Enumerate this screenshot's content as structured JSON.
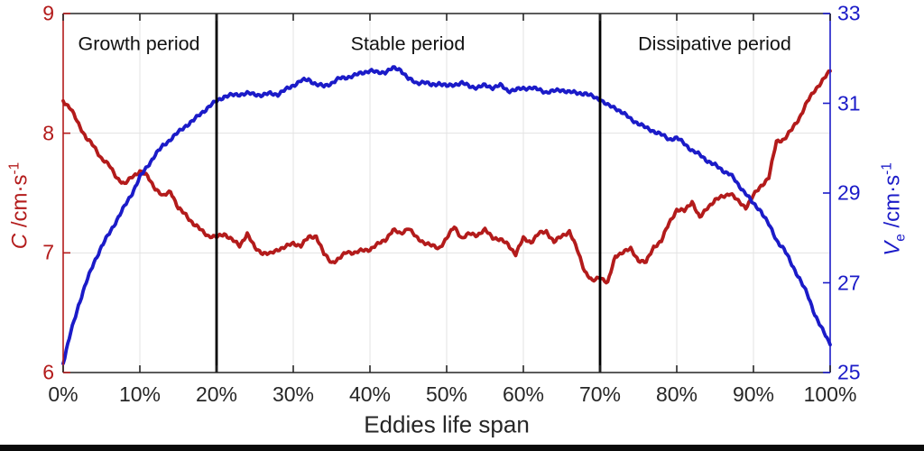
{
  "figure": {
    "xlabel": "Eddies life span",
    "x_ticks": [
      "0%",
      "10%",
      "20%",
      "30%",
      "40%",
      "50%",
      "60%",
      "70%",
      "80%",
      "90%",
      "100%"
    ],
    "left_axis": {
      "symbol": "C",
      "unit": "/cm·s",
      "exp": "-1",
      "tick_labels": [
        "6",
        "7",
        "8",
        "9"
      ],
      "tick_values": [
        6,
        7,
        8,
        9
      ],
      "color": "#b31b1b"
    },
    "right_axis": {
      "symbol": "V",
      "sub": "e",
      "unit": "/cm·s",
      "exp": "-1",
      "tick_labels": [
        "25",
        "27",
        "29",
        "31",
        "33"
      ],
      "tick_values": [
        25,
        27,
        29,
        31,
        33
      ],
      "color": "#1b1bc8"
    },
    "regions": [
      {
        "label": "Growth period"
      },
      {
        "label": "Stable period"
      },
      {
        "label": "Dissipative period"
      }
    ],
    "colors": {
      "grid": "#e3e3e3",
      "x_axis_text": "#262626",
      "frame": "#262626",
      "divider": "#000000"
    }
  },
  "chart_data": {
    "type": "line",
    "title": "",
    "xlabel": "Eddies life span",
    "x": {
      "start": 0,
      "end": 100,
      "step": 1,
      "unit": "%"
    },
    "grid": true,
    "vertical_lines_percent": [
      20,
      70
    ],
    "annotations": [
      {
        "text": "Growth period",
        "x_percent": 10
      },
      {
        "text": "Stable period",
        "x_percent": 45
      },
      {
        "text": "Dissipative period",
        "x_percent": 85
      }
    ],
    "series": [
      {
        "name": "C",
        "axis": "left",
        "ylabel": "C /cm·s⁻¹",
        "ylim": [
          6,
          9
        ],
        "color": "#b31b1b",
        "values": [
          8.27,
          8.2,
          8.08,
          7.96,
          7.89,
          7.79,
          7.73,
          7.63,
          7.57,
          7.64,
          7.68,
          7.64,
          7.54,
          7.47,
          7.52,
          7.37,
          7.32,
          7.24,
          7.19,
          7.14,
          7.13,
          7.16,
          7.11,
          7.06,
          7.16,
          7.04,
          7.0,
          6.99,
          7.03,
          7.05,
          7.08,
          7.06,
          7.13,
          7.14,
          6.99,
          6.92,
          6.95,
          7.01,
          7.0,
          7.02,
          7.03,
          7.07,
          7.11,
          7.19,
          7.16,
          7.21,
          7.13,
          7.09,
          7.06,
          7.04,
          7.12,
          7.22,
          7.12,
          7.16,
          7.15,
          7.19,
          7.13,
          7.11,
          7.07,
          6.99,
          7.12,
          7.09,
          7.16,
          7.18,
          7.09,
          7.14,
          7.18,
          7.03,
          6.85,
          6.76,
          6.8,
          6.75,
          6.97,
          7.01,
          7.03,
          6.94,
          6.92,
          7.05,
          7.1,
          7.25,
          7.36,
          7.35,
          7.43,
          7.29,
          7.38,
          7.44,
          7.47,
          7.5,
          7.43,
          7.38,
          7.48,
          7.56,
          7.63,
          7.93,
          7.95,
          8.03,
          8.13,
          8.26,
          8.36,
          8.44,
          8.52
        ]
      },
      {
        "name": "Ve",
        "axis": "right",
        "ylabel": "V_e /cm·s⁻¹",
        "ylim": [
          25,
          33
        ],
        "color": "#1b1bc8",
        "values": [
          25.2,
          25.9,
          26.5,
          27.0,
          27.45,
          27.8,
          28.1,
          28.4,
          28.7,
          29.0,
          29.35,
          29.6,
          29.85,
          30.05,
          30.2,
          30.35,
          30.5,
          30.62,
          30.78,
          30.92,
          31.05,
          31.15,
          31.18,
          31.2,
          31.22,
          31.2,
          31.18,
          31.22,
          31.2,
          31.3,
          31.4,
          31.5,
          31.53,
          31.42,
          31.38,
          31.45,
          31.55,
          31.58,
          31.62,
          31.68,
          31.73,
          31.68,
          31.7,
          31.78,
          31.75,
          31.55,
          31.45,
          31.48,
          31.4,
          31.45,
          31.38,
          31.42,
          31.45,
          31.38,
          31.35,
          31.4,
          31.35,
          31.4,
          31.28,
          31.3,
          31.33,
          31.35,
          31.3,
          31.25,
          31.27,
          31.3,
          31.25,
          31.23,
          31.22,
          31.15,
          31.09,
          30.95,
          30.9,
          30.78,
          30.65,
          30.55,
          30.45,
          30.38,
          30.3,
          30.2,
          30.23,
          30.1,
          29.95,
          29.85,
          29.72,
          29.62,
          29.5,
          29.42,
          29.18,
          29.0,
          28.75,
          28.6,
          28.3,
          27.95,
          27.75,
          27.4,
          27.1,
          26.75,
          26.3,
          25.95,
          25.62
        ]
      }
    ]
  }
}
